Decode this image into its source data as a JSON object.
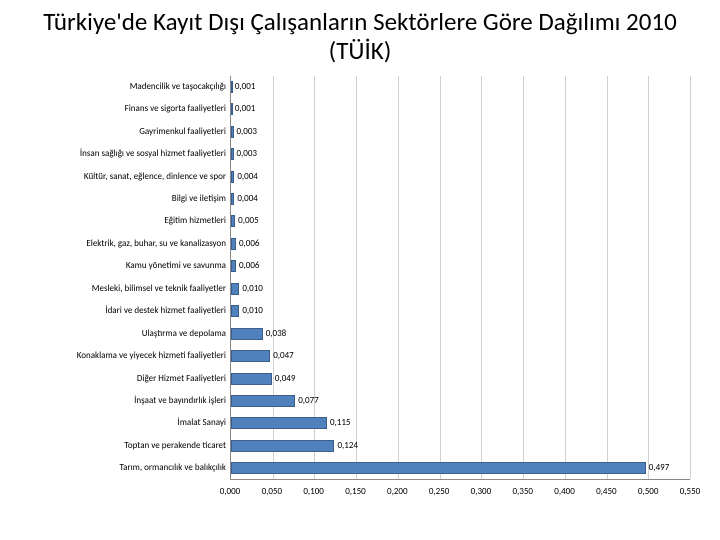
{
  "title": "Türkiye'de Kayıt Dışı Çalışanların Sektörlere Göre Dağılımı 2010 (TÜİK)",
  "chart": {
    "type": "bar-horizontal",
    "bar_color": "#4f81bd",
    "bar_border_color": "#3a5f8b",
    "grid_color": "#d0d0d0",
    "axis_color": "#888888",
    "background_color": "#ffffff",
    "label_fontsize": 9,
    "title_fontsize": 25,
    "xlim": [
      0,
      0.55
    ],
    "xtick_step": 0.05,
    "xticks": [
      "0,000",
      "0,050",
      "0,100",
      "0,150",
      "0,200",
      "0,250",
      "0,300",
      "0,350",
      "0,400",
      "0,450",
      "0,500",
      "0,550"
    ],
    "categories": [
      "Madencilik ve taşocakçılığı",
      "Finans ve sigorta faaliyetleri",
      "Gayrimenkul faaliyetleri",
      "İnsan sağlığı ve sosyal hizmet faaliyetleri",
      "Kültür, sanat, eğlence, dinlence ve spor",
      "Bilgi ve iletişim",
      "Eğitim hizmetleri",
      "Elektrik, gaz, buhar, su ve kanalizasyon",
      "Kamu yönetimi ve savunma",
      "Mesleki, bilimsel ve teknik faaliyetler",
      "İdari ve destek hizmet faaliyetleri",
      "Ulaştırma ve depolama",
      "Konaklama ve yiyecek hizmeti faaliyetleri",
      "Diğer Hizmet Faaliyetleri",
      "İnşaat ve bayındırlık işleri",
      "İmalat Sanayi",
      "Toptan ve perakende ticaret",
      "Tarım, ormancılık ve balıkçılık"
    ],
    "values": [
      0.001,
      0.001,
      0.003,
      0.003,
      0.004,
      0.004,
      0.005,
      0.006,
      0.006,
      0.01,
      0.01,
      0.038,
      0.047,
      0.049,
      0.077,
      0.115,
      0.124,
      0.497
    ],
    "value_labels": [
      "0,001",
      "0,001",
      "0,003",
      "0,003",
      "0,004",
      "0,004",
      "0,005",
      "0,006",
      "0,006",
      "0,010",
      "0,010",
      "0,038",
      "0,047",
      "0,049",
      "0,077",
      "0,115",
      "0,124",
      "0,497"
    ]
  }
}
